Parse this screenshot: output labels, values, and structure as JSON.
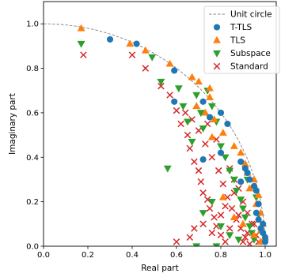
{
  "chart_data": {
    "type": "scatter",
    "title": "",
    "xlabel": "Real part",
    "ylabel": "Imaginary part",
    "xlim": [
      0.0,
      1.05
    ],
    "ylim": [
      0.0,
      1.1
    ],
    "xticks": [
      "0.0",
      "0.2",
      "0.4",
      "0.6",
      "0.8",
      "1.0"
    ],
    "yticks": [
      "0.0",
      "0.2",
      "0.4",
      "0.6",
      "0.8",
      "1.0"
    ],
    "grid": false,
    "legend_position": "top-right",
    "unit_circle": {
      "name": "Unit circle",
      "color": "#808080",
      "style": "dashed"
    },
    "series": [
      {
        "name": "T-TLS",
        "marker": "circle",
        "color": "#1f77b4",
        "points": [
          [
            0.3,
            0.93
          ],
          [
            0.42,
            0.91
          ],
          [
            0.59,
            0.79
          ],
          [
            0.59,
            0.65
          ],
          [
            0.72,
            0.65
          ],
          [
            0.8,
            0.6
          ],
          [
            0.83,
            0.55
          ],
          [
            0.75,
            0.58
          ],
          [
            0.8,
            0.42
          ],
          [
            0.72,
            0.39
          ],
          [
            0.89,
            0.38
          ],
          [
            0.91,
            0.35
          ],
          [
            0.92,
            0.33
          ],
          [
            0.93,
            0.3
          ],
          [
            0.89,
            0.29
          ],
          [
            0.95,
            0.27
          ],
          [
            0.96,
            0.25
          ],
          [
            0.97,
            0.19
          ],
          [
            0.96,
            0.15
          ],
          [
            0.97,
            0.12
          ],
          [
            0.99,
            0.1
          ],
          [
            0.98,
            0.08
          ],
          [
            0.99,
            0.06
          ],
          [
            1.0,
            0.04
          ],
          [
            1.0,
            0.02
          ]
        ]
      },
      {
        "name": "TLS",
        "marker": "triangle-up",
        "color": "#ff7f0e",
        "points": [
          [
            0.17,
            0.98
          ],
          [
            0.39,
            0.91
          ],
          [
            0.46,
            0.88
          ],
          [
            0.57,
            0.82
          ],
          [
            0.67,
            0.76
          ],
          [
            0.7,
            0.74
          ],
          [
            0.75,
            0.71
          ],
          [
            0.75,
            0.67
          ],
          [
            0.69,
            0.63
          ],
          [
            0.73,
            0.6
          ],
          [
            0.77,
            0.57
          ],
          [
            0.81,
            0.51
          ],
          [
            0.76,
            0.49
          ],
          [
            0.86,
            0.45
          ],
          [
            0.89,
            0.42
          ],
          [
            0.91,
            0.37
          ],
          [
            0.92,
            0.33
          ],
          [
            0.95,
            0.3
          ],
          [
            0.93,
            0.26
          ],
          [
            0.97,
            0.23
          ],
          [
            0.96,
            0.19
          ],
          [
            0.98,
            0.15
          ],
          [
            0.99,
            0.1
          ],
          [
            0.98,
            0.07
          ],
          [
            1.0,
            0.04
          ],
          [
            0.98,
            0.02
          ],
          [
            0.95,
            0.05
          ],
          [
            0.9,
            0.1
          ],
          [
            0.81,
            0.22
          ],
          [
            0.86,
            0.13
          ]
        ]
      },
      {
        "name": "Subspace",
        "marker": "triangle-down",
        "color": "#2ca02c",
        "points": [
          [
            0.17,
            0.91
          ],
          [
            0.49,
            0.85
          ],
          [
            0.53,
            0.74
          ],
          [
            0.56,
            0.35
          ],
          [
            0.61,
            0.71
          ],
          [
            0.63,
            0.63
          ],
          [
            0.65,
            0.56
          ],
          [
            0.67,
            0.47
          ],
          [
            0.69,
            0.68
          ],
          [
            0.71,
            0.6
          ],
          [
            0.72,
            0.53
          ],
          [
            0.74,
            0.7
          ],
          [
            0.76,
            0.63
          ],
          [
            0.78,
            0.56
          ],
          [
            0.8,
            0.45
          ],
          [
            0.82,
            0.4
          ],
          [
            0.84,
            0.34
          ],
          [
            0.86,
            0.3
          ],
          [
            0.87,
            0.25
          ],
          [
            0.89,
            0.21
          ],
          [
            0.9,
            0.17
          ],
          [
            0.91,
            0.13
          ],
          [
            0.93,
            0.09
          ],
          [
            0.94,
            0.06
          ],
          [
            0.95,
            0.03
          ],
          [
            0.72,
            0.15
          ],
          [
            0.76,
            0.2
          ],
          [
            0.8,
            0.09
          ],
          [
            0.84,
            0.05
          ],
          [
            0.88,
            0.03
          ],
          [
            0.69,
            0.0
          ],
          [
            0.78,
            0.0
          ],
          [
            0.92,
            0.3
          ],
          [
            0.96,
            0.22
          ],
          [
            0.97,
            0.14
          ]
        ]
      },
      {
        "name": "Standard",
        "marker": "x",
        "color": "#d62728",
        "points": [
          [
            0.18,
            0.86
          ],
          [
            0.4,
            0.86
          ],
          [
            0.46,
            0.8
          ],
          [
            0.53,
            0.72
          ],
          [
            0.57,
            0.68
          ],
          [
            0.6,
            0.61
          ],
          [
            0.62,
            0.55
          ],
          [
            0.65,
            0.5
          ],
          [
            0.66,
            0.44
          ],
          [
            0.68,
            0.38
          ],
          [
            0.7,
            0.34
          ],
          [
            0.71,
            0.29
          ],
          [
            0.72,
            0.24
          ],
          [
            0.74,
            0.21
          ],
          [
            0.75,
            0.17
          ],
          [
            0.77,
            0.13
          ],
          [
            0.78,
            0.09
          ],
          [
            0.8,
            0.05
          ],
          [
            0.82,
            0.02
          ],
          [
            0.7,
            0.52
          ],
          [
            0.73,
            0.46
          ],
          [
            0.76,
            0.4
          ],
          [
            0.79,
            0.34
          ],
          [
            0.81,
            0.28
          ],
          [
            0.83,
            0.22
          ],
          [
            0.85,
            0.17
          ],
          [
            0.87,
            0.12
          ],
          [
            0.89,
            0.08
          ],
          [
            0.91,
            0.04
          ],
          [
            0.93,
            0.01
          ],
          [
            0.64,
            0.6
          ],
          [
            0.67,
            0.57
          ],
          [
            0.74,
            0.55
          ],
          [
            0.78,
            0.48
          ],
          [
            0.84,
            0.35
          ],
          [
            0.86,
            0.3
          ],
          [
            0.88,
            0.26
          ],
          [
            0.9,
            0.2
          ],
          [
            0.92,
            0.15
          ],
          [
            0.94,
            0.1
          ],
          [
            0.96,
            0.05
          ],
          [
            0.97,
            0.02
          ],
          [
            0.72,
            0.1
          ],
          [
            0.76,
            0.06
          ],
          [
            0.8,
            0.14
          ],
          [
            0.84,
            0.08
          ],
          [
            0.88,
            0.14
          ],
          [
            0.92,
            0.06
          ],
          [
            0.95,
            0.1
          ],
          [
            0.68,
            0.08
          ],
          [
            0.6,
            0.02
          ],
          [
            0.66,
            0.04
          ],
          [
            0.82,
            0.18
          ],
          [
            0.86,
            0.24
          ],
          [
            0.9,
            0.02
          ]
        ]
      }
    ]
  }
}
